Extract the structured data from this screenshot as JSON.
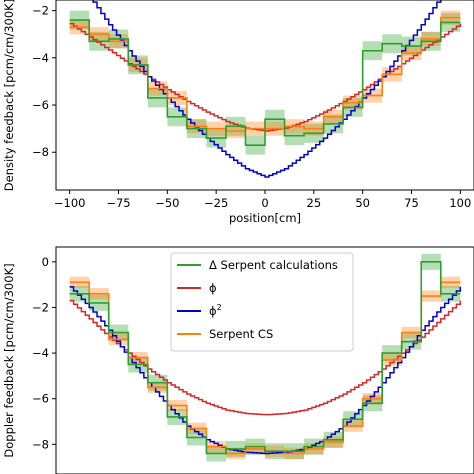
{
  "chart_data": [
    {
      "type": "line",
      "xlabel": "position[cm]",
      "ylabel": "Density feedback [pcm/cm/300K]",
      "xlim": [
        -107,
        107
      ],
      "ylim": [
        -9.6,
        -1.55
      ],
      "x_ticks": [
        -100,
        -75,
        -50,
        -25,
        0,
        25,
        50,
        75,
        100
      ],
      "y_ticks": [
        -8,
        -6,
        -4,
        -2
      ],
      "x_tick_labels": [
        "−100",
        "−75",
        "−50",
        "−25",
        "0",
        "25",
        "50",
        "75",
        "100"
      ],
      "y_tick_labels": [
        "−8",
        "−6",
        "−4",
        "−2"
      ],
      "grid": false,
      "series": [
        {
          "name": "Δ Serpent calculations",
          "color": "#2ca02c",
          "style": "step",
          "band": 0.4,
          "edges": [
            -100,
            -90,
            -80,
            -70,
            -60,
            -50,
            -40,
            -30,
            -20,
            -10,
            0,
            10,
            20,
            30,
            40,
            50,
            60,
            70,
            80,
            90,
            100
          ],
          "values": [
            -2.4,
            -3.3,
            -3.2,
            -4.3,
            -5.7,
            -6.5,
            -7.0,
            -7.4,
            -6.9,
            -7.7,
            -6.6,
            -7.3,
            -7.2,
            -6.8,
            -6.1,
            -3.7,
            -3.4,
            -3.5,
            -3.3,
            -2.5
          ]
        },
        {
          "name": "Serpent CS",
          "color": "#ff7f0e",
          "style": "step",
          "band": 0.3,
          "edges": [
            -100,
            -90,
            -80,
            -70,
            -60,
            -50,
            -40,
            -30,
            -20,
            -10,
            0,
            10,
            20,
            30,
            40,
            50,
            60,
            70,
            80,
            90,
            100
          ],
          "values": [
            -2.7,
            -3.0,
            -3.3,
            -4.3,
            -5.3,
            -5.7,
            -6.9,
            -7.0,
            -7.1,
            -7.0,
            -7.0,
            -6.9,
            -7.0,
            -6.5,
            -5.9,
            -5.6,
            -4.7,
            -3.8,
            -3.2,
            -2.3
          ]
        },
        {
          "name": "ϕ",
          "color": "#d62728",
          "style": "curve",
          "curve": {
            "x": [
              -100,
              -90,
              -80,
              -70,
              -60,
              -50,
              -40,
              -30,
              -20,
              -10,
              0,
              10,
              20,
              30,
              40,
              50,
              60,
              70,
              80,
              90,
              100
            ],
            "y": [
              -2.55,
              -3.12,
              -3.67,
              -4.25,
              -4.8,
              -5.35,
              -5.85,
              -6.3,
              -6.7,
              -6.98,
              -7.1,
              -6.98,
              -6.7,
              -6.3,
              -5.85,
              -5.35,
              -4.8,
              -4.25,
              -3.67,
              -3.12,
              -2.55
            ]
          }
        },
        {
          "name": "ϕ²",
          "color": "#0000cc",
          "style": "curve",
          "curve": {
            "x": [
              -100,
              -90,
              -80,
              -70,
              -60,
              -50,
              -40,
              -30,
              -20,
              -10,
              0,
              10,
              20,
              30,
              40,
              50,
              60,
              70,
              80,
              90,
              100
            ],
            "y": [
              -1.0,
              -1.4,
              -2.6,
              -3.7,
              -4.8,
              -5.7,
              -6.6,
              -7.4,
              -8.1,
              -8.7,
              -9.05,
              -8.7,
              -8.1,
              -7.4,
              -6.6,
              -5.7,
              -4.8,
              -3.7,
              -2.6,
              -1.4,
              -1.0
            ]
          }
        }
      ]
    },
    {
      "type": "line",
      "xlabel": "",
      "ylabel": "Doppler feedback [pcm/cm/300K]",
      "xlim": [
        -107,
        107
      ],
      "ylim": [
        -9.3,
        0.65
      ],
      "x_ticks": [],
      "y_ticks": [
        -8,
        -6,
        -4,
        -2,
        0
      ],
      "y_tick_labels": [
        "−8",
        "−6",
        "−4",
        "−2",
        "0"
      ],
      "grid": false,
      "legend": {
        "position": "upper-center",
        "entries": [
          "Δ Serpent calculations",
          "ϕ",
          "ϕ²",
          "Serpent CS"
        ]
      },
      "series": [
        {
          "name": "Δ Serpent calculations",
          "color": "#2ca02c",
          "style": "step",
          "band": 0.35,
          "edges": [
            -100,
            -90,
            -80,
            -70,
            -60,
            -50,
            -40,
            -30,
            -20,
            -10,
            0,
            10,
            20,
            30,
            40,
            50,
            60,
            70,
            80,
            90,
            100
          ],
          "values": [
            -1.4,
            -1.8,
            -3.1,
            -4.5,
            -5.3,
            -6.8,
            -7.7,
            -8.4,
            -8.2,
            -8.1,
            -8.3,
            -8.3,
            -8.1,
            -7.8,
            -6.9,
            -6.2,
            -4.0,
            -3.5,
            0.0,
            -1.4
          ]
        },
        {
          "name": "Serpent CS",
          "color": "#ff7f0e",
          "style": "step",
          "band": 0.25,
          "edges": [
            -100,
            -90,
            -80,
            -70,
            -60,
            -50,
            -40,
            -30,
            -20,
            -10,
            0,
            10,
            20,
            30,
            40,
            50,
            60,
            70,
            80,
            90,
            100
          ],
          "values": [
            -0.9,
            -1.4,
            -3.4,
            -4.2,
            -5.5,
            -6.3,
            -7.3,
            -8.1,
            -8.4,
            -8.2,
            -8.3,
            -8.4,
            -8.2,
            -7.9,
            -7.2,
            -6.0,
            -4.3,
            -3.1,
            -1.5,
            -0.9
          ]
        },
        {
          "name": "ϕ",
          "color": "#d62728",
          "style": "curve",
          "curve": {
            "x": [
              -100,
              -90,
              -80,
              -70,
              -60,
              -50,
              -40,
              -30,
              -20,
              -10,
              0,
              10,
              20,
              30,
              40,
              50,
              60,
              70,
              80,
              90,
              100
            ],
            "y": [
              -1.7,
              -2.5,
              -3.3,
              -4.0,
              -4.7,
              -5.3,
              -5.8,
              -6.2,
              -6.5,
              -6.65,
              -6.7,
              -6.65,
              -6.5,
              -6.2,
              -5.8,
              -5.3,
              -4.7,
              -4.0,
              -3.3,
              -2.5,
              -1.7
            ]
          }
        },
        {
          "name": "ϕ²",
          "color": "#0000cc",
          "style": "curve",
          "curve": {
            "x": [
              -100,
              -90,
              -80,
              -70,
              -60,
              -50,
              -40,
              -30,
              -20,
              -10,
              0,
              10,
              20,
              30,
              40,
              50,
              60,
              70,
              80,
              90,
              100
            ],
            "y": [
              -1.1,
              -2.0,
              -3.0,
              -4.2,
              -5.3,
              -6.3,
              -7.2,
              -7.8,
              -8.2,
              -8.35,
              -8.4,
              -8.35,
              -8.2,
              -7.8,
              -7.2,
              -6.3,
              -5.3,
              -4.2,
              -3.0,
              -2.0,
              -1.1
            ]
          }
        }
      ]
    }
  ]
}
